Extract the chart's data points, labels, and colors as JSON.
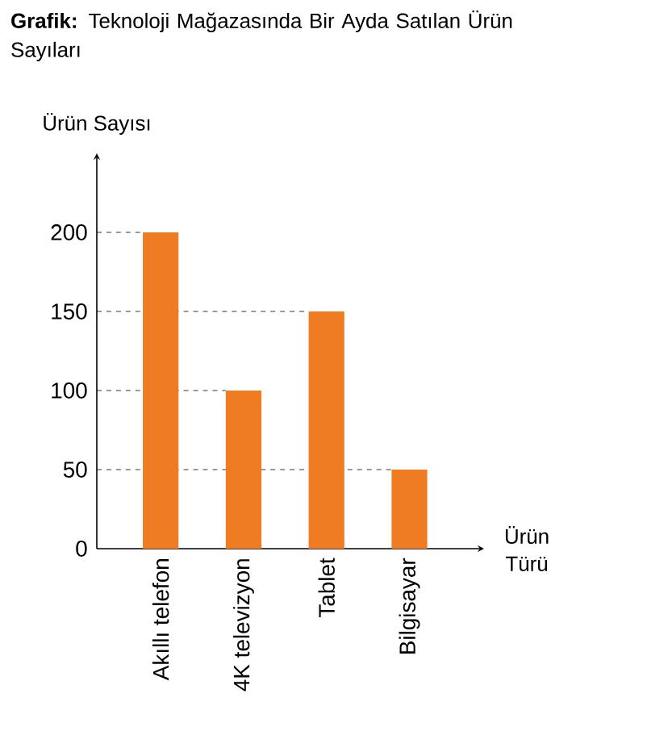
{
  "chart_data": {
    "type": "bar",
    "title": "**Grafik:** Teknoloji Mağazasında Bir Ayda Satılan Ürün Sayıları",
    "ylabel": "Ürün Sayısı",
    "xlabel": "Ürün Türü",
    "categories": [
      "Akıllı telefon",
      "4K televizyon",
      "Tablet",
      "Bilgisayar"
    ],
    "values": [
      200,
      100,
      150,
      50
    ],
    "ref_lines": [
      {
        "axis": "y",
        "value": 200,
        "line_style": "dashed",
        "color": "#000000"
      },
      {
        "axis": "y",
        "value": 150,
        "line_style": "dashed",
        "color": "#000000"
      },
      {
        "axis": "y",
        "value": 100,
        "line_style": "dashed",
        "color": "#000000"
      },
      {
        "axis": "y",
        "value": 50,
        "line_style": "dashed",
        "color": "#000000"
      }
    ],
    "color": "#ef7b22",
    "ylim": [
      0,
      250
    ],
    "yticks": [
      0,
      50,
      100,
      150,
      200
    ]
  }
}
